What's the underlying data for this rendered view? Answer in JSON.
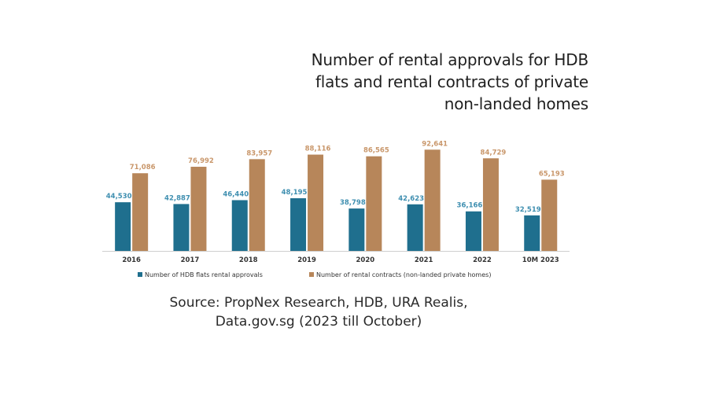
{
  "title_lines": [
    "Number of rental approvals for HDB",
    "flats and rental contracts of private",
    "non-landed homes"
  ],
  "source_lines": [
    "Source: PropNex Research, HDB, URA Realis,",
    "Data.gov.sg (2023 till October)"
  ],
  "colors": {
    "hdb": "#1f6f8e",
    "private": "#b7865a",
    "hdb_label": "#3f8fb0",
    "private_label": "#c9976b"
  },
  "chart_data": {
    "type": "bar",
    "categories": [
      "2016",
      "2017",
      "2018",
      "2019",
      "2020",
      "2021",
      "2022",
      "10M 2023"
    ],
    "series": [
      {
        "name": "Number of HDB flats rental approvals",
        "values": [
          44530,
          42887,
          46440,
          48195,
          38798,
          42623,
          36166,
          32519
        ],
        "labels": [
          "44,530",
          "42,887",
          "46,440",
          "48,195",
          "38,798",
          "42,623",
          "36,166",
          "32,519"
        ]
      },
      {
        "name": "Number of rental contracts (non-landed private homes)",
        "values": [
          71086,
          76992,
          83957,
          88116,
          86565,
          92641,
          84729,
          65193
        ],
        "labels": [
          "71,086",
          "76,992",
          "83,957",
          "88,116",
          "86,565",
          "92,641",
          "84,729",
          "65,193"
        ]
      }
    ],
    "ylim": [
      0,
      100000
    ],
    "legend_position": "bottom"
  }
}
